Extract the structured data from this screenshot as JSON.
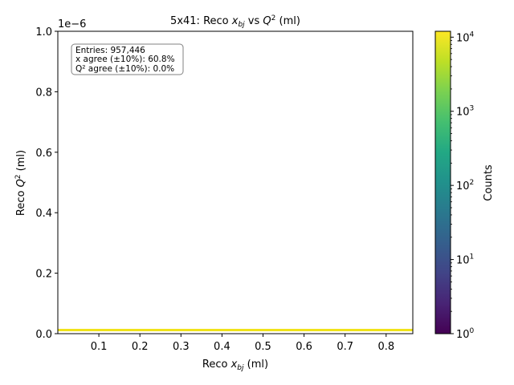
{
  "chart_data": {
    "type": "heatmap",
    "title": "5x41: Reco $x_{bj}$ vs $Q^2$ (ml)",
    "title_parts": {
      "pre": "5x41: Reco ",
      "x_base": "x",
      "x_sub": "bj",
      "mid": " vs ",
      "q_base": "Q",
      "q_sup": "2",
      "post": " (ml)"
    },
    "xlabel": "Reco $x_{bj}$ (ml)",
    "xlabel_parts": {
      "pre": "Reco ",
      "base": "x",
      "sub": "bj",
      "post": " (ml)"
    },
    "ylabel": "Reco $Q^2$ (ml)",
    "ylabel_parts": {
      "pre": "Reco ",
      "base": "Q",
      "sup": "2",
      "post": " (ml)"
    },
    "xlim": [
      0.0,
      0.865
    ],
    "ylim": [
      0.0,
      1e-06
    ],
    "y_offset_text": "1e−6",
    "x_ticks": [
      0.1,
      0.2,
      0.3,
      0.4,
      0.5,
      0.6,
      0.7,
      0.8
    ],
    "x_tick_labels": [
      "0.1",
      "0.2",
      "0.3",
      "0.4",
      "0.5",
      "0.6",
      "0.7",
      "0.8"
    ],
    "y_ticks": [
      0.0,
      0.2,
      0.4,
      0.6,
      0.8,
      1.0
    ],
    "y_tick_labels": [
      "0.0",
      "0.2",
      "0.4",
      "0.6",
      "0.8",
      "1.0"
    ],
    "filled_band": {
      "x_range": [
        0.0,
        0.865
      ],
      "y_range": [
        0.0,
        0.008
      ],
      "color": "#f0e31a"
    },
    "colorbar": {
      "label": "Counts",
      "scale": "log",
      "range": [
        1,
        12000
      ],
      "colormap": "viridis",
      "ticks": [
        {
          "base": "10",
          "exp": "0",
          "value": 1
        },
        {
          "base": "10",
          "exp": "1",
          "value": 10
        },
        {
          "base": "10",
          "exp": "2",
          "value": 100
        },
        {
          "base": "10",
          "exp": "3",
          "value": 1000
        },
        {
          "base": "10",
          "exp": "4",
          "value": 10000
        }
      ]
    },
    "stats_box": {
      "lines": [
        "Entries: 957,446",
        "x agree (±10%): 60.8%",
        "Q² agree (±10%): 0.0%"
      ]
    },
    "grid": false,
    "legend": "none"
  }
}
